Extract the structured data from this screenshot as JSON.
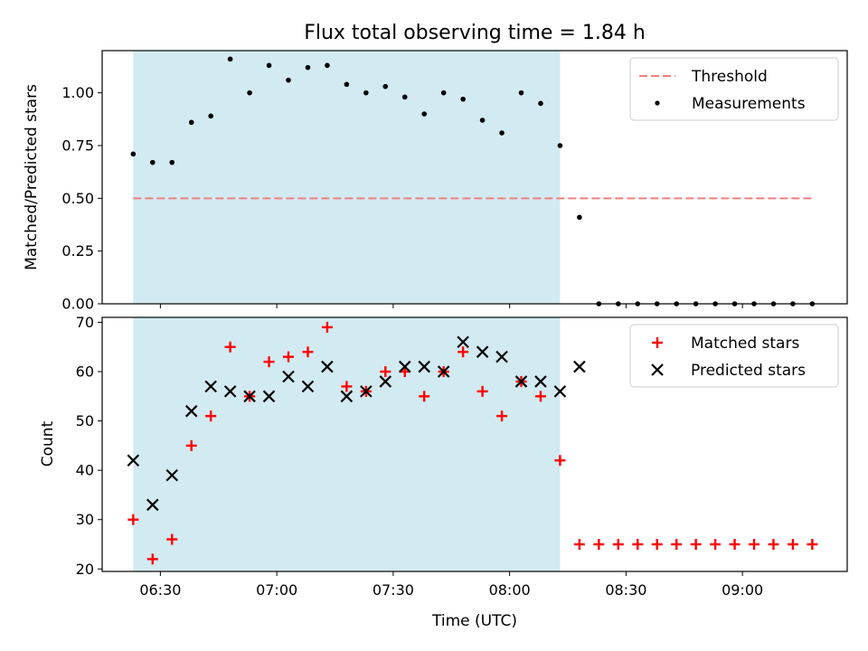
{
  "chart_data": [
    {
      "type": "scatter",
      "title": "Flux total observing time = 1.84 h",
      "xlabel": "",
      "ylabel": "Matched/Predicted stars",
      "xlim": [
        "06:15",
        "09:27"
      ],
      "ylim": [
        0,
        1.2
      ],
      "yticks": [
        "0.00",
        "0.25",
        "0.50",
        "0.75",
        "1.00"
      ],
      "ytick_values": [
        0,
        0.25,
        0.5,
        0.75,
        1.0
      ],
      "shaded_span": [
        "06:23",
        "08:13"
      ],
      "shaded_color": "#add8e6",
      "legend_position": "top-right",
      "threshold": {
        "name": "Threshold",
        "value": 0.5,
        "x_range": [
          "06:23",
          "09:18"
        ],
        "color": "#f08080"
      },
      "series": [
        {
          "name": "Measurements",
          "color": "#000000",
          "x": [
            "06:23",
            "06:28",
            "06:33",
            "06:38",
            "06:43",
            "06:48",
            "06:53",
            "06:58",
            "07:03",
            "07:08",
            "07:13",
            "07:18",
            "07:23",
            "07:28",
            "07:33",
            "07:38",
            "07:43",
            "07:48",
            "07:53",
            "07:58",
            "08:03",
            "08:08",
            "08:13",
            "08:18",
            "08:23",
            "08:28",
            "08:33",
            "08:38",
            "08:43",
            "08:48",
            "08:53",
            "08:58",
            "09:03",
            "09:08",
            "09:13",
            "09:18"
          ],
          "values": [
            0.71,
            0.67,
            0.67,
            0.86,
            0.89,
            1.16,
            1.0,
            1.13,
            1.06,
            1.12,
            1.13,
            1.04,
            1.0,
            1.03,
            0.98,
            0.9,
            1.0,
            0.97,
            0.87,
            0.81,
            1.0,
            0.95,
            0.75,
            0.41,
            0,
            0,
            0,
            0,
            0,
            0,
            0,
            0,
            0,
            0,
            0,
            0
          ]
        }
      ]
    },
    {
      "type": "scatter",
      "title": "",
      "xlabel": "Time (UTC)",
      "ylabel": "Count",
      "xlim": [
        "06:15",
        "09:27"
      ],
      "ylim": [
        19.5,
        71
      ],
      "xticks": [
        "06:30",
        "07:00",
        "07:30",
        "08:00",
        "08:30",
        "09:00"
      ],
      "yticks": [
        "20",
        "30",
        "40",
        "50",
        "60",
        "70"
      ],
      "ytick_values": [
        20,
        30,
        40,
        50,
        60,
        70
      ],
      "shaded_span": [
        "06:23",
        "08:13"
      ],
      "shaded_color": "#add8e6",
      "legend_position": "top-right",
      "series": [
        {
          "name": "Matched stars",
          "marker": "+",
          "color": "#ff0000",
          "x": [
            "06:23",
            "06:28",
            "06:33",
            "06:38",
            "06:43",
            "06:48",
            "06:53",
            "06:58",
            "07:03",
            "07:08",
            "07:13",
            "07:18",
            "07:23",
            "07:28",
            "07:33",
            "07:38",
            "07:43",
            "07:48",
            "07:53",
            "07:58",
            "08:03",
            "08:08",
            "08:13",
            "08:18",
            "08:23",
            "08:28",
            "08:33",
            "08:38",
            "08:43",
            "08:48",
            "08:53",
            "08:58",
            "09:03",
            "09:08",
            "09:13",
            "09:18"
          ],
          "values": [
            30,
            22,
            26,
            45,
            51,
            65,
            55,
            62,
            63,
            64,
            69,
            57,
            56,
            60,
            60,
            55,
            60,
            64,
            56,
            51,
            58,
            55,
            42,
            25,
            25,
            25,
            25,
            25,
            25,
            25,
            25,
            25,
            25,
            25,
            25,
            25
          ]
        },
        {
          "name": "Predicted stars",
          "marker": "x",
          "color": "#000000",
          "x": [
            "06:23",
            "06:28",
            "06:33",
            "06:38",
            "06:43",
            "06:48",
            "06:53",
            "06:58",
            "07:03",
            "07:08",
            "07:13",
            "07:18",
            "07:23",
            "07:28",
            "07:33",
            "07:38",
            "07:43",
            "07:48",
            "07:53",
            "07:58",
            "08:03",
            "08:08",
            "08:13",
            "08:18"
          ],
          "values": [
            42,
            33,
            39,
            52,
            57,
            56,
            55,
            55,
            59,
            57,
            61,
            55,
            56,
            58,
            61,
            61,
            60,
            66,
            64,
            63,
            58,
            58,
            56,
            61
          ]
        }
      ]
    }
  ]
}
